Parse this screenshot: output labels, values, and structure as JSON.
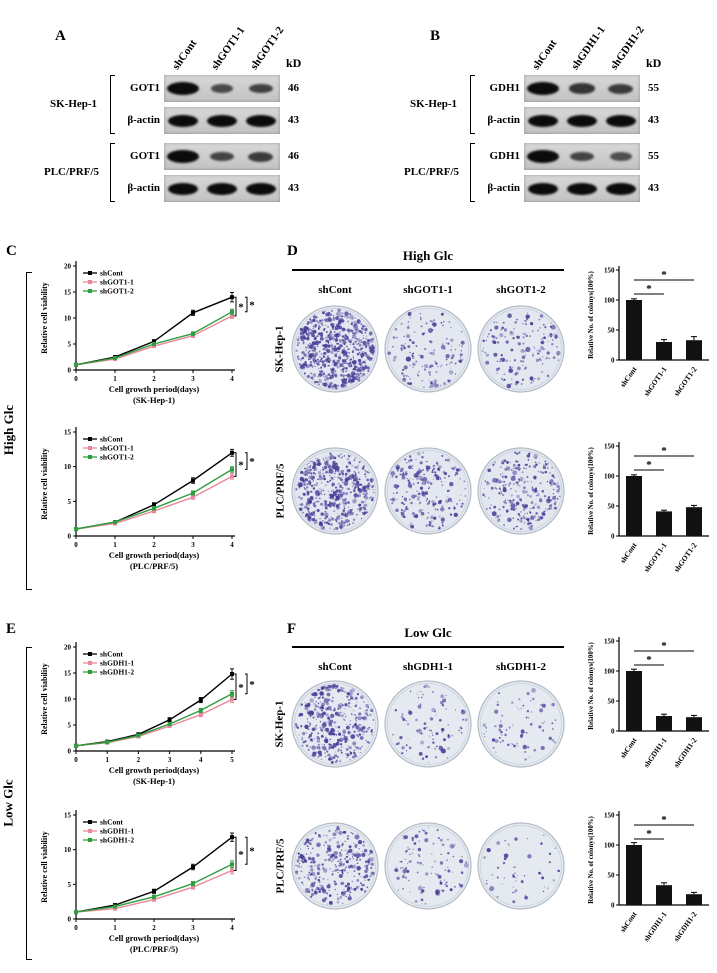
{
  "figure": {
    "bg": "#ffffff"
  },
  "panels": {
    "A": {
      "letter": "A",
      "kd_label": "kD",
      "lanes": [
        "shCont",
        "shGOT1-1",
        "shGOT1-2"
      ],
      "cell_lines": [
        {
          "name": "SK-Hep-1",
          "rows": [
            {
              "protein": "GOT1",
              "mw": "46",
              "intensities": [
                1,
                0.35,
                0.45
              ]
            },
            {
              "protein": "β-actin",
              "mw": "43",
              "intensities": [
                1,
                1,
                1
              ]
            }
          ]
        },
        {
          "name": "PLC/PRF/5",
          "rows": [
            {
              "protein": "GOT1",
              "mw": "46",
              "intensities": [
                1,
                0.4,
                0.5
              ]
            },
            {
              "protein": "β-actin",
              "mw": "43",
              "intensities": [
                1,
                1,
                1
              ]
            }
          ]
        }
      ]
    },
    "B": {
      "letter": "B",
      "kd_label": "kD",
      "lanes": [
        "shCont",
        "shGDH1-1",
        "shGDH1-2"
      ],
      "cell_lines": [
        {
          "name": "SK-Hep-1",
          "rows": [
            {
              "protein": "GDH1",
              "mw": "55",
              "intensities": [
                1,
                0.55,
                0.5
              ]
            },
            {
              "protein": "β-actin",
              "mw": "43",
              "intensities": [
                1,
                1,
                1
              ]
            }
          ]
        },
        {
          "name": "PLC/PRF/5",
          "rows": [
            {
              "protein": "GDH1",
              "mw": "55",
              "intensities": [
                1,
                0.4,
                0.3
              ]
            },
            {
              "protein": "β-actin",
              "mw": "43",
              "intensities": [
                1,
                1,
                1
              ]
            }
          ]
        }
      ]
    }
  },
  "line_panels": {
    "C": {
      "letter": "C",
      "side_label": "High Glc"
    },
    "E": {
      "letter": "E",
      "side_label": "Low Glc"
    }
  },
  "colony_panels": {
    "D": {
      "letter": "D",
      "title": "High Glc",
      "columns": [
        "shCont",
        "shGOT1-1",
        "shGOT1-2"
      ],
      "rows": [
        {
          "name": "SK-Hep-1",
          "densities": [
            700,
            150,
            165
          ]
        },
        {
          "name": "PLC/PRF/5",
          "densities": [
            550,
            230,
            285
          ]
        }
      ],
      "plate_bg": "#e3e8f0",
      "dot_color": "#4a3d98"
    },
    "F": {
      "letter": "F",
      "title": "Low Glc",
      "columns": [
        "shCont",
        "shGDH1-1",
        "shGDH1-2"
      ],
      "rows": [
        {
          "name": "SK-Hep-1",
          "densities": [
            400,
            90,
            80
          ]
        },
        {
          "name": "PLC/PRF/5",
          "densities": [
            350,
            115,
            55
          ]
        }
      ],
      "plate_bg": "#e5eaf1",
      "dot_color": "#4a3d98"
    }
  },
  "chart_data": [
    {
      "id": "C1",
      "type": "line",
      "x": [
        0,
        1,
        2,
        3,
        4
      ],
      "series": [
        {
          "name": "shCont",
          "color": "#000000",
          "values": [
            1,
            2.5,
            5.5,
            11,
            14
          ],
          "errors": [
            0.15,
            0.25,
            0.35,
            0.5,
            0.9
          ]
        },
        {
          "name": "shGOT1-1",
          "color": "#e8889a",
          "values": [
            1,
            2.1,
            4.6,
            6.6,
            10.4
          ],
          "errors": [
            0.15,
            0.2,
            0.3,
            0.35,
            0.5
          ]
        },
        {
          "name": "shGOT1-2",
          "color": "#2e9e3e",
          "values": [
            1,
            2.3,
            5.0,
            7.0,
            11.2
          ],
          "errors": [
            0.15,
            0.2,
            0.3,
            0.35,
            0.5
          ]
        }
      ],
      "xlabel": "Cell growth period(days)",
      "xlabel2": "(SK-Hep-1)",
      "ylabel": "Relative cell viability",
      "ylim": [
        0,
        20
      ],
      "yticks": [
        0,
        5,
        10,
        15,
        20
      ],
      "significance": [
        "*",
        "*"
      ],
      "legend_position": "top-left",
      "grid": false
    },
    {
      "id": "C2",
      "type": "line",
      "x": [
        0,
        1,
        2,
        3,
        4
      ],
      "series": [
        {
          "name": "shCont",
          "color": "#000000",
          "values": [
            1,
            2,
            4.5,
            8,
            12
          ],
          "errors": [
            0.1,
            0.2,
            0.3,
            0.4,
            0.5
          ]
        },
        {
          "name": "shGOT1-1",
          "color": "#e8889a",
          "values": [
            1,
            1.8,
            3.6,
            5.6,
            8.6
          ],
          "errors": [
            0.1,
            0.15,
            0.25,
            0.3,
            0.4
          ]
        },
        {
          "name": "shGOT1-2",
          "color": "#2e9e3e",
          "values": [
            1,
            2,
            4.0,
            6.2,
            9.6
          ],
          "errors": [
            0.1,
            0.15,
            0.25,
            0.3,
            0.4
          ]
        }
      ],
      "xlabel": "Cell growth period(days)",
      "xlabel2": "(PLC/PRF/5)",
      "ylabel": "Relative cell viability",
      "ylim": [
        0,
        15
      ],
      "yticks": [
        0,
        5,
        10,
        15
      ],
      "significance": [
        "*",
        "*"
      ],
      "legend_position": "top-left",
      "grid": false
    },
    {
      "id": "D1",
      "type": "bar",
      "categories": [
        "shCont",
        "shGOT1-1",
        "shGOT1-2"
      ],
      "values": [
        100,
        30,
        33
      ],
      "errors": [
        2,
        4,
        6
      ],
      "bar_color": "#111111",
      "ylabel": "Relative No. of colonys(100%)",
      "ylim": [
        0,
        150
      ],
      "yticks": [
        0,
        50,
        100,
        150
      ],
      "significance": [
        "*",
        "*"
      ]
    },
    {
      "id": "D2",
      "type": "bar",
      "categories": [
        "shCont",
        "shGOT1-1",
        "shGOT1-2"
      ],
      "values": [
        100,
        41,
        48
      ],
      "errors": [
        2,
        2,
        3
      ],
      "bar_color": "#111111",
      "ylabel": "Relative No. of colonys(100%)",
      "ylim": [
        0,
        150
      ],
      "yticks": [
        0,
        50,
        100,
        150
      ],
      "significance": [
        "*",
        "*"
      ]
    },
    {
      "id": "E1",
      "type": "line",
      "x": [
        0,
        1,
        2,
        3,
        4,
        5
      ],
      "series": [
        {
          "name": "shCont",
          "color": "#000000",
          "values": [
            1,
            1.8,
            3.2,
            6,
            9.8,
            14.8
          ],
          "errors": [
            0.1,
            0.2,
            0.3,
            0.4,
            0.5,
            1.0
          ]
        },
        {
          "name": "shGDH1-1",
          "color": "#e8889a",
          "values": [
            1,
            1.6,
            2.8,
            4.8,
            7,
            9.9
          ],
          "errors": [
            0.1,
            0.15,
            0.25,
            0.3,
            0.4,
            0.6
          ]
        },
        {
          "name": "shGDH1-2",
          "color": "#2e9e3e",
          "values": [
            1,
            1.7,
            3.0,
            5.2,
            7.8,
            11
          ],
          "errors": [
            0.1,
            0.15,
            0.25,
            0.3,
            0.4,
            0.6
          ]
        }
      ],
      "xlabel": "Cell growth period(days)",
      "xlabel2": "(SK-Hep-1)",
      "ylabel": "Relative cell viability",
      "ylim": [
        0,
        20
      ],
      "yticks": [
        0,
        5,
        10,
        15,
        20
      ],
      "significance": [
        "*",
        "*"
      ],
      "legend_position": "top-left",
      "grid": false
    },
    {
      "id": "E2",
      "type": "line",
      "x": [
        0,
        1,
        2,
        3,
        4
      ],
      "series": [
        {
          "name": "shCont",
          "color": "#000000",
          "values": [
            1,
            2,
            4,
            7.5,
            11.8
          ],
          "errors": [
            0.1,
            0.2,
            0.3,
            0.4,
            0.6
          ]
        },
        {
          "name": "shGDH1-1",
          "color": "#e8889a",
          "values": [
            1,
            1.5,
            2.8,
            4.6,
            7
          ],
          "errors": [
            0.1,
            0.15,
            0.25,
            0.3,
            0.5
          ]
        },
        {
          "name": "shGDH1-2",
          "color": "#2e9e3e",
          "values": [
            1,
            1.8,
            3.2,
            5.1,
            7.9
          ],
          "errors": [
            0.1,
            0.15,
            0.25,
            0.3,
            0.5
          ]
        }
      ],
      "xlabel": "Cell growth period(days)",
      "xlabel2": "(PLC/PRF/5)",
      "ylabel": "Relative cell viability",
      "ylim": [
        0,
        15
      ],
      "yticks": [
        0,
        5,
        10,
        15
      ],
      "significance": [
        "*",
        "*"
      ],
      "legend_position": "top-left",
      "grid": false
    },
    {
      "id": "F1",
      "type": "bar",
      "categories": [
        "shCont",
        "shGDH1-1",
        "shGDH1-2"
      ],
      "values": [
        100,
        25,
        23
      ],
      "errors": [
        3,
        3,
        3
      ],
      "bar_color": "#111111",
      "ylabel": "Relative No. of colonys(100%)",
      "ylim": [
        0,
        150
      ],
      "yticks": [
        0,
        50,
        100,
        150
      ],
      "significance": [
        "*",
        "*"
      ]
    },
    {
      "id": "F2",
      "type": "bar",
      "categories": [
        "shCont",
        "shGDH1-1",
        "shGDH1-2"
      ],
      "values": [
        100,
        33,
        18
      ],
      "errors": [
        4,
        4,
        3
      ],
      "bar_color": "#111111",
      "ylabel": "Relative No. of colonys(100%)",
      "ylim": [
        0,
        150
      ],
      "yticks": [
        0,
        50,
        100,
        150
      ],
      "significance": [
        "*",
        "*"
      ]
    }
  ]
}
